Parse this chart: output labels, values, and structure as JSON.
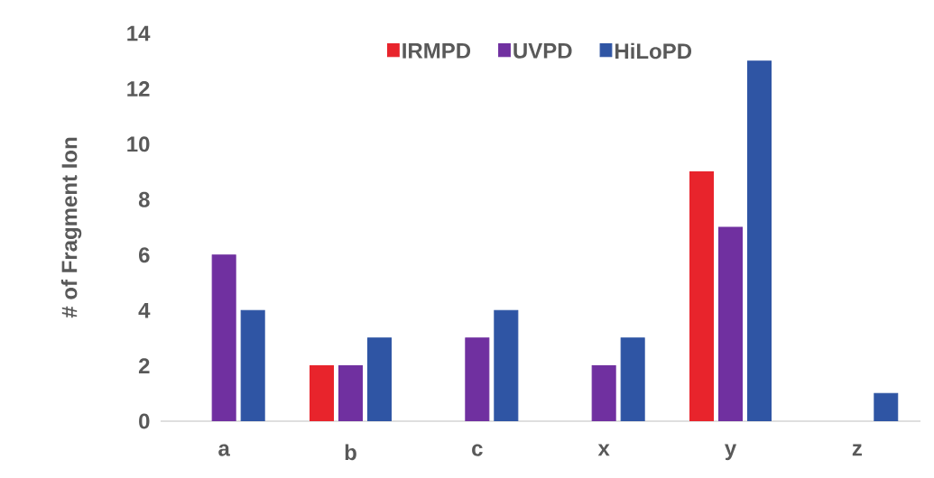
{
  "chart_data": {
    "type": "bar",
    "ylabel": "# of Fragment Ion",
    "categories": [
      "a",
      "b",
      "c",
      "x",
      "y",
      "z"
    ],
    "series": [
      {
        "name": "IRMPD",
        "color": "#e8242c",
        "values": [
          0,
          2,
          0,
          0,
          9,
          0
        ]
      },
      {
        "name": "UVPD",
        "color": "#7030a0",
        "values": [
          6,
          2,
          3,
          2,
          7,
          0
        ]
      },
      {
        "name": "HiLoPD",
        "color": "#2f55a4",
        "values": [
          4,
          3,
          4,
          3,
          13,
          1
        ]
      }
    ],
    "ylim": [
      0,
      14
    ],
    "yticks": [
      0,
      2,
      4,
      6,
      8,
      10,
      12,
      14
    ],
    "legend": "top",
    "grid": false
  }
}
